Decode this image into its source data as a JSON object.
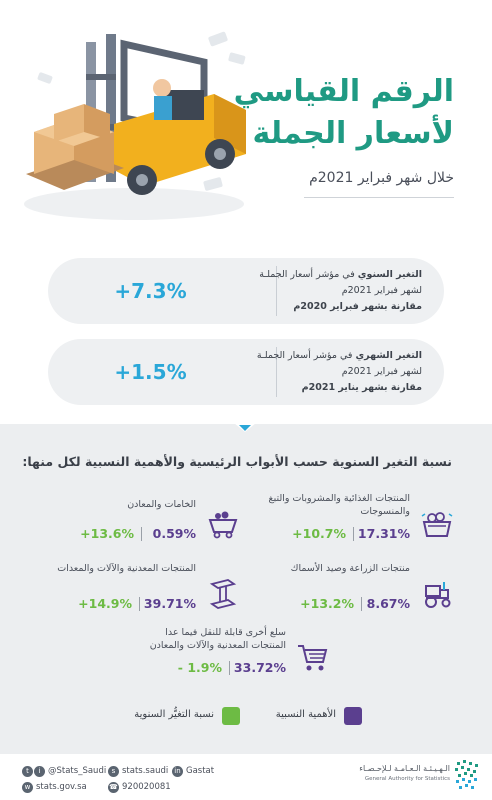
{
  "header": {
    "title_line1": "الرقم القياسي",
    "title_line2": "لأسعار الجملة",
    "period": "خلال شهر فبراير 2021م"
  },
  "cards": [
    {
      "value": "+7.3%",
      "label_bold": "التغير السنوي",
      "label_rest": " في مؤشر أسعار الجملـة لشهر فبراير 2021م",
      "comparison": "مقارنة بشهر فبراير 2020م"
    },
    {
      "value": "+1.5%",
      "label_bold": "التغير الشهري",
      "label_rest": " في مؤشر أسعار الجملـة لشهر فبراير 2021م",
      "comparison": "مقارنة بشهر يناير 2021م"
    }
  ],
  "breakdown": {
    "title": "نسبة التغير السنوية حسب الأبواب الرئيسية والأهمية النسبية لكل منها:",
    "items": [
      {
        "label": "المنتجات الغذائية والمشروبات والتبغ والمنسوجات",
        "share": "17.31%",
        "change": "+10.7%",
        "icon": "food-basket-icon"
      },
      {
        "label": "الخامات والمعادن",
        "share": "0.59%",
        "change": "+13.6%",
        "icon": "mine-cart-icon"
      },
      {
        "label": "منتجات الزراعة وصيد الأسماك",
        "share": "8.67%",
        "change": "+13.2%",
        "icon": "tractor-icon"
      },
      {
        "label": "المنتجات المعدنية والآلات والمعدات",
        "share": "39.71%",
        "change": "+14.9%",
        "icon": "steel-beam-icon"
      },
      {
        "label": "سلع أخرى قابلة للنقل فيما عدا المنتجات المعدنية والآلات والمعادن",
        "share": "33.72%",
        "change": "- 1.9%",
        "icon": "shopping-cart-icon"
      }
    ],
    "legend": {
      "share_label": "الأهمية النسبية",
      "change_label": "نسبة التغيُّر السنوية"
    },
    "colors": {
      "share": "#5b3f8f",
      "change": "#6dbb44",
      "accent": "#2aa7d8",
      "title": "#1f9a83"
    }
  },
  "footer": {
    "twitter": "@Stats_Saudi",
    "snapchat": "stats.saudi",
    "linkedin": "Gastat",
    "website": "stats.gov.sa",
    "phone": "920020081",
    "org_ar": "الـهـيـئـة الـعـامـة لـلإحـصـاء",
    "org_en": "General Authority for Statistics"
  }
}
